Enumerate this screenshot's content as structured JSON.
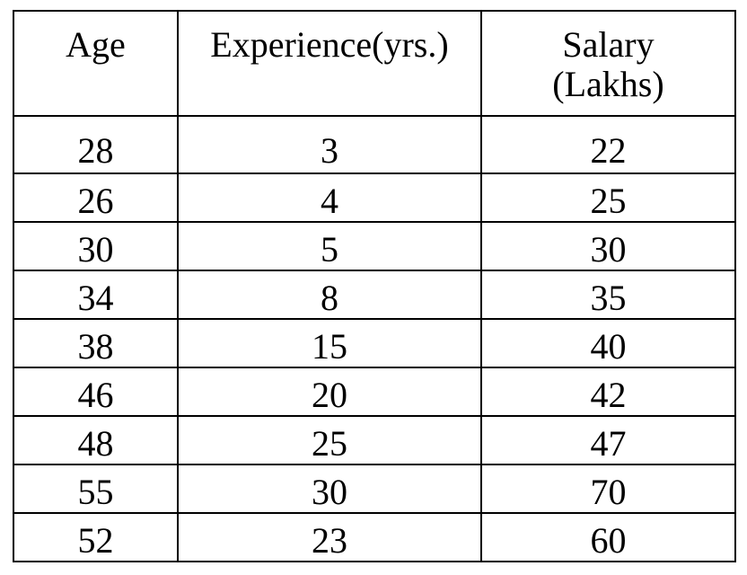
{
  "table": {
    "headers": [
      [
        "Age"
      ],
      [
        "Experience(yrs.)"
      ],
      [
        "Salary",
        "(Lakhs)"
      ]
    ],
    "rows": [
      [
        "28",
        "3",
        "22"
      ],
      [
        "26",
        "4",
        "25"
      ],
      [
        "30",
        "5",
        "30"
      ],
      [
        "34",
        "8",
        "35"
      ],
      [
        "38",
        "15",
        "40"
      ],
      [
        "46",
        "20",
        "42"
      ],
      [
        "48",
        "25",
        "47"
      ],
      [
        "55",
        "30",
        "70"
      ],
      [
        "52",
        "23",
        "60"
      ]
    ]
  },
  "chart_data": {
    "type": "table",
    "columns": [
      "Age",
      "Experience(yrs.)",
      "Salary (Lakhs)"
    ],
    "rows": [
      [
        28,
        3,
        22
      ],
      [
        26,
        4,
        25
      ],
      [
        30,
        5,
        30
      ],
      [
        34,
        8,
        35
      ],
      [
        38,
        15,
        40
      ],
      [
        46,
        20,
        42
      ],
      [
        48,
        25,
        47
      ],
      [
        55,
        30,
        70
      ],
      [
        52,
        23,
        60
      ]
    ]
  }
}
